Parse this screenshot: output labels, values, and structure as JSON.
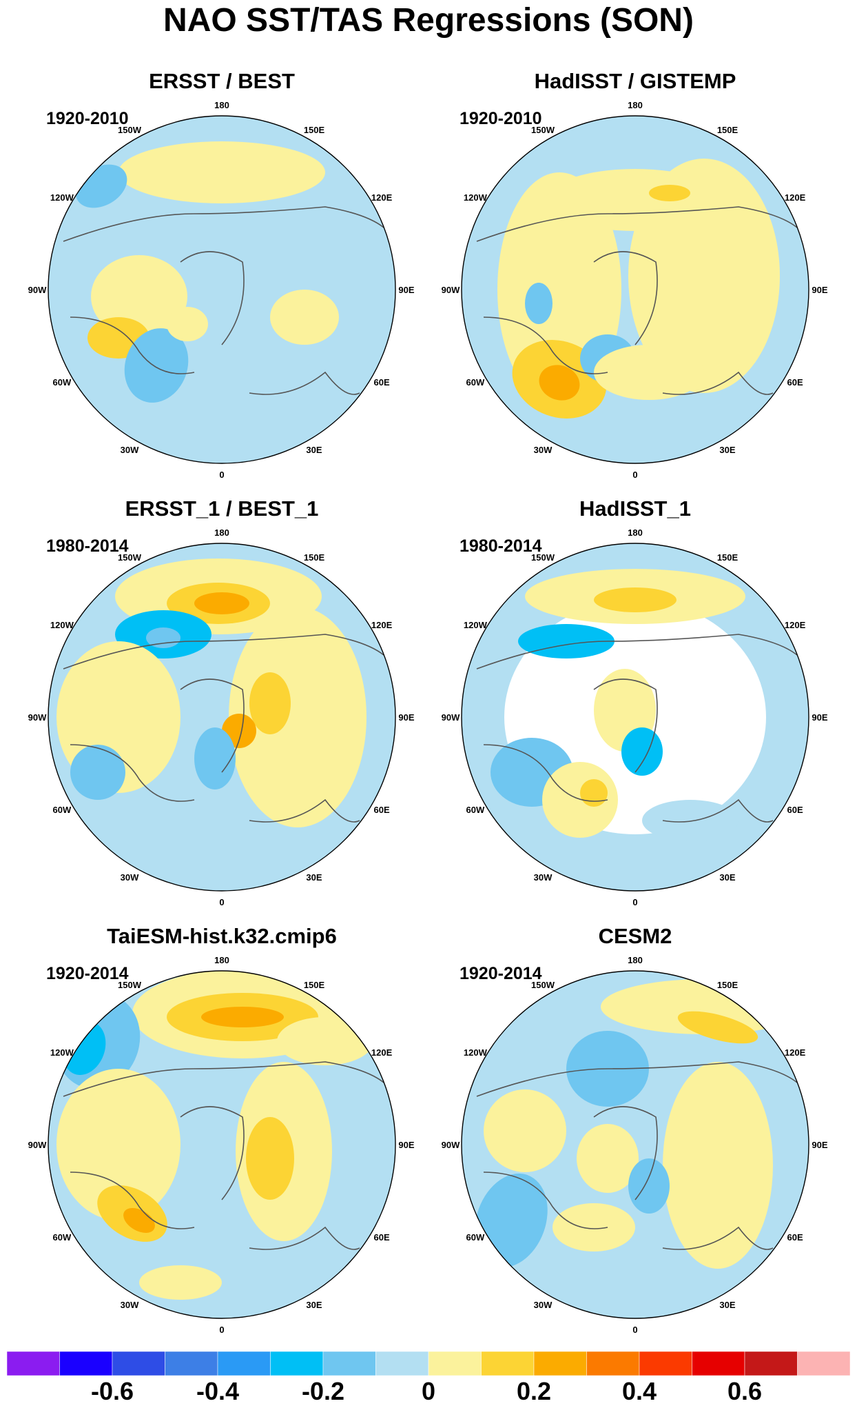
{
  "figure": {
    "title": "NAO SST/TAS Regressions (SON)",
    "panels": [
      {
        "title": "ERSST / BEST",
        "period": "1920-2010"
      },
      {
        "title": "HadISST / GISTEMP",
        "period": "1920-2010"
      },
      {
        "title": "ERSST_1 / BEST_1",
        "period": "1980-2014"
      },
      {
        "title": "HadISST_1",
        "period": "1980-2014"
      },
      {
        "title": "TaiESM-hist.k32.cmip6",
        "period": "1920-2014"
      },
      {
        "title": "CESM2",
        "period": "1920-2014"
      }
    ],
    "longitude_labels": [
      "180",
      "150E",
      "120E",
      "90E",
      "60E",
      "30E",
      "0",
      "30W",
      "60W",
      "90W",
      "120W",
      "150W"
    ]
  },
  "colorbar": {
    "colors": [
      "#8b1cf0",
      "#1a00ff",
      "#2e4de6",
      "#3d7fe6",
      "#2a9af5",
      "#00bff5",
      "#6fc6f0",
      "#b3dff2",
      "#fbf29c",
      "#fcd434",
      "#fbab00",
      "#fb7a00",
      "#fb3a00",
      "#e60000",
      "#c41818",
      "#fcb3b3"
    ],
    "labels": [
      "-0.6",
      "-0.4",
      "-0.2",
      "0",
      "0.2",
      "0.4",
      "0.6"
    ]
  },
  "colors": {
    "background_zero": "#b3dff2",
    "coast": "#555555"
  }
}
